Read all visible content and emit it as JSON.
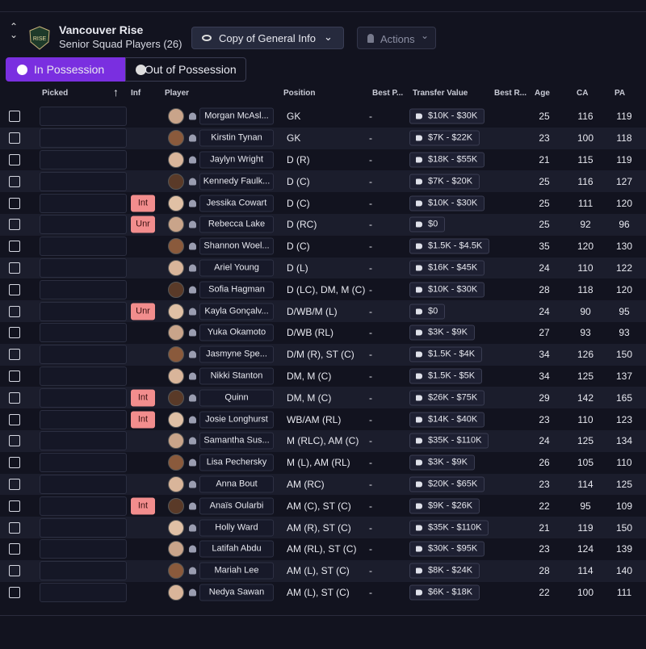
{
  "header": {
    "club": "Vancouver Rise",
    "subtitle": "Senior Squad Players (26)",
    "view": "Copy of General Info",
    "actions": "Actions"
  },
  "tabs": [
    "In Possession",
    "Out of Possession"
  ],
  "table": {
    "columns": [
      "Picked",
      "Inf",
      "Player",
      "Position",
      "Best P...",
      "Transfer Value",
      "Best R...",
      "Age",
      "CA",
      "PA"
    ],
    "rows": [
      {
        "player": "Morgan McAsl...",
        "position": "GK",
        "best_position": "-",
        "transfer_value": "$10K - $30K",
        "age": 25,
        "ca": 116,
        "pa": 119
      },
      {
        "player": "Kirstin Tynan",
        "position": "GK",
        "best_position": "-",
        "transfer_value": "$7K - $22K",
        "age": 23,
        "ca": 100,
        "pa": 118
      },
      {
        "player": "Jaylyn Wright",
        "position": "D (R)",
        "best_position": "-",
        "transfer_value": "$18K - $55K",
        "age": 21,
        "ca": 115,
        "pa": 119
      },
      {
        "player": "Kennedy Faulk...",
        "position": "D (C)",
        "best_position": "-",
        "transfer_value": "$7K - $20K",
        "age": 25,
        "ca": 116,
        "pa": 127
      },
      {
        "inf": "Int",
        "player": "Jessika Cowart",
        "position": "D (C)",
        "best_position": "-",
        "transfer_value": "$10K - $30K",
        "age": 25,
        "ca": 111,
        "pa": 120
      },
      {
        "inf": "Unr",
        "player": "Rebecca Lake",
        "position": "D (RC)",
        "best_position": "-",
        "transfer_value": "$0",
        "age": 25,
        "ca": 92,
        "pa": 96
      },
      {
        "player": "Shannon Woel...",
        "position": "D (C)",
        "best_position": "-",
        "transfer_value": "$1.5K - $4.5K",
        "age": 35,
        "ca": 120,
        "pa": 130
      },
      {
        "player": "Ariel Young",
        "position": "D (L)",
        "best_position": "-",
        "transfer_value": "$16K - $45K",
        "age": 24,
        "ca": 110,
        "pa": 122
      },
      {
        "player": "Sofia Hagman",
        "position": "D (LC), DM, M (C)",
        "best_position": "-",
        "transfer_value": "$10K - $30K",
        "age": 28,
        "ca": 118,
        "pa": 120
      },
      {
        "inf": "Unr",
        "player": "Kayla Gonçalv...",
        "position": "D/WB/M (L)",
        "best_position": "-",
        "transfer_value": "$0",
        "age": 24,
        "ca": 90,
        "pa": 95
      },
      {
        "player": "Yuka Okamoto",
        "position": "D/WB (RL)",
        "best_position": "-",
        "transfer_value": "$3K - $9K",
        "age": 27,
        "ca": 93,
        "pa": 93
      },
      {
        "player": "Jasmyne Spe...",
        "position": "D/M (R), ST (C)",
        "best_position": "-",
        "transfer_value": "$1.5K - $4K",
        "age": 34,
        "ca": 126,
        "pa": 150
      },
      {
        "player": "Nikki Stanton",
        "position": "DM, M (C)",
        "best_position": "-",
        "transfer_value": "$1.5K - $5K",
        "age": 34,
        "ca": 125,
        "pa": 137
      },
      {
        "inf": "Int",
        "player": "Quinn",
        "position": "DM, M (C)",
        "best_position": "-",
        "transfer_value": "$26K - $75K",
        "age": 29,
        "ca": 142,
        "pa": 165
      },
      {
        "inf": "Int",
        "player": "Josie Longhurst",
        "position": "WB/AM (RL)",
        "best_position": "-",
        "transfer_value": "$14K - $40K",
        "age": 23,
        "ca": 110,
        "pa": 123
      },
      {
        "player": "Samantha Sus...",
        "position": "M (RLC), AM (C)",
        "best_position": "-",
        "transfer_value": "$35K - $110K",
        "age": 24,
        "ca": 125,
        "pa": 134
      },
      {
        "player": "Lisa Pechersky",
        "position": "M (L), AM (RL)",
        "best_position": "-",
        "transfer_value": "$3K - $9K",
        "age": 26,
        "ca": 105,
        "pa": 110
      },
      {
        "player": "Anna Bout",
        "position": "AM (RC)",
        "best_position": "-",
        "transfer_value": "$20K - $65K",
        "age": 23,
        "ca": 114,
        "pa": 125
      },
      {
        "inf": "Int",
        "player": "Anaïs Oularbi",
        "position": "AM (C), ST (C)",
        "best_position": "-",
        "transfer_value": "$9K - $26K",
        "age": 22,
        "ca": 95,
        "pa": 109
      },
      {
        "player": "Holly Ward",
        "position": "AM (R), ST (C)",
        "best_position": "-",
        "transfer_value": "$35K - $110K",
        "age": 21,
        "ca": 119,
        "pa": 150
      },
      {
        "player": "Latifah Abdu",
        "position": "AM (RL), ST (C)",
        "best_position": "-",
        "transfer_value": "$30K - $95K",
        "age": 23,
        "ca": 124,
        "pa": 139
      },
      {
        "player": "Mariah Lee",
        "position": "AM (L), ST (C)",
        "best_position": "-",
        "transfer_value": "$8K - $24K",
        "age": 28,
        "ca": 114,
        "pa": 140
      },
      {
        "player": "Nedya Sawan",
        "position": "AM (L), ST (C)",
        "best_position": "-",
        "transfer_value": "$6K - $18K",
        "age": 22,
        "ca": 100,
        "pa": 111
      }
    ]
  }
}
